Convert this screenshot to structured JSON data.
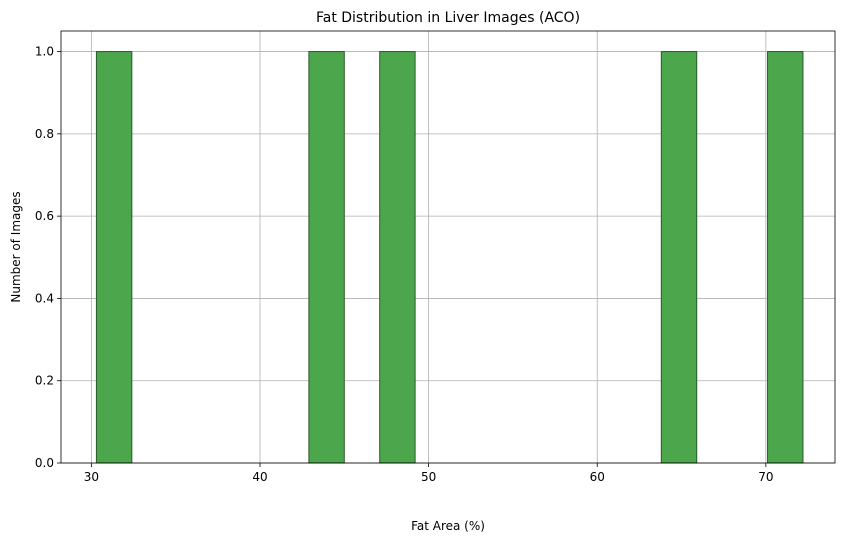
{
  "chart_data": {
    "type": "bar",
    "title": "Fat Distribution in Liver Images (ACO)",
    "xlabel": "Fat Area (%)",
    "ylabel": "Number of Images",
    "xlim": [
      28.2,
      74.1
    ],
    "ylim": [
      0,
      1.05
    ],
    "xticks": [
      30,
      40,
      50,
      60,
      70
    ],
    "yticks": [
      0.0,
      0.2,
      0.4,
      0.6,
      0.8,
      1.0
    ],
    "ytick_labels": [
      "0.0",
      "0.2",
      "0.4",
      "0.6",
      "0.8",
      "1.0"
    ],
    "grid": true,
    "bars": [
      {
        "x_start": 30.3,
        "x_end": 32.4,
        "count": 1
      },
      {
        "x_start": 42.9,
        "x_end": 45.0,
        "count": 1
      },
      {
        "x_start": 47.1,
        "x_end": 49.2,
        "count": 1
      },
      {
        "x_start": 63.8,
        "x_end": 65.9,
        "count": 1
      },
      {
        "x_start": 70.1,
        "x_end": 72.2,
        "count": 1
      }
    ],
    "colors": {
      "bar_fill": "#4ca64c",
      "bar_edge": "#2a5a2a"
    }
  }
}
